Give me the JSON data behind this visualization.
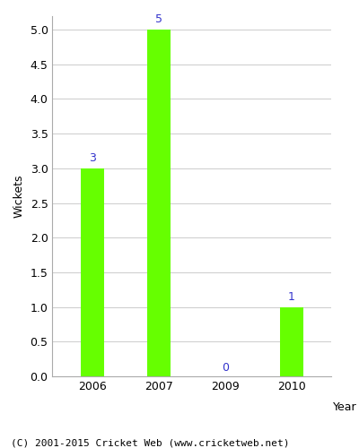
{
  "categories": [
    "2006",
    "2007",
    "2009",
    "2010"
  ],
  "values": [
    3,
    5,
    0,
    1
  ],
  "bar_color": "#66ff00",
  "bar_edge_color": "#66ff00",
  "label_color": "#3333cc",
  "label_fontsize": 9,
  "ylabel": "Wickets",
  "xlabel": "Year",
  "ylim": [
    0,
    5.2
  ],
  "yticks": [
    0.0,
    0.5,
    1.0,
    1.5,
    2.0,
    2.5,
    3.0,
    3.5,
    4.0,
    4.5,
    5.0
  ],
  "grid_color": "#cccccc",
  "background_color": "#ffffff",
  "caption": "(C) 2001-2015 Cricket Web (www.cricketweb.net)",
  "caption_fontsize": 8,
  "bar_width": 0.35,
  "title": ""
}
